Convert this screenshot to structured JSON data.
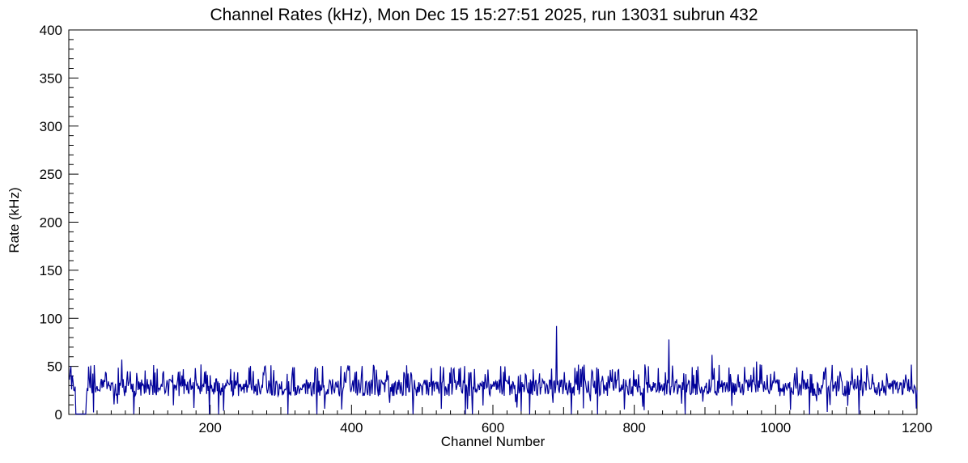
{
  "chart_data": {
    "type": "line",
    "title": "Channel Rates (kHz), Mon Dec 15 15:27:51 2025, run 13031 subrun 432",
    "xlabel": "Channel Number",
    "ylabel": "Rate (kHz)",
    "xlim": [
      0,
      1200
    ],
    "ylim": [
      0,
      400
    ],
    "x_major_ticks": [
      200,
      400,
      600,
      800,
      1000,
      1200
    ],
    "x_minor_tick_step": 20,
    "y_major_ticks": [
      0,
      50,
      100,
      150,
      200,
      250,
      300,
      350,
      400
    ],
    "y_minor_tick_step": 10,
    "grid": false,
    "legend": "none",
    "line_color": "#000099",
    "frame_color": "#000000",
    "background": "#ffffff",
    "series_spec": {
      "description": "Noisy per-channel rate, ~1200 channels, baseline band ~18-38 kHz with frequent peaks to ~50 kHz, occasional dead (0 kHz) channels and a few outlier spikes",
      "channels": [
        1,
        1200
      ],
      "baseline_mean": 28,
      "baseline_jitter": 9,
      "tall_fraction": 0.13,
      "tall_range": [
        40,
        52
      ],
      "low_fraction": 0.03,
      "low_range": [
        2,
        14
      ],
      "seed": 13031,
      "zero_channels": [
        10,
        11,
        12,
        13,
        14,
        15,
        16,
        17,
        18,
        19,
        20,
        21,
        22,
        23,
        24,
        92,
        199,
        212,
        310,
        351,
        487,
        561,
        571,
        652,
        711,
        748,
        872,
        1048,
        1118
      ],
      "spikes": [
        {
          "x": 2,
          "y": 46
        },
        {
          "x": 3,
          "y": 50
        },
        {
          "x": 75,
          "y": 57
        },
        {
          "x": 352,
          "y": 48
        },
        {
          "x": 690,
          "y": 92
        },
        {
          "x": 849,
          "y": 78
        },
        {
          "x": 910,
          "y": 62
        },
        {
          "x": 973,
          "y": 55
        },
        {
          "x": 978,
          "y": 52
        }
      ]
    }
  }
}
